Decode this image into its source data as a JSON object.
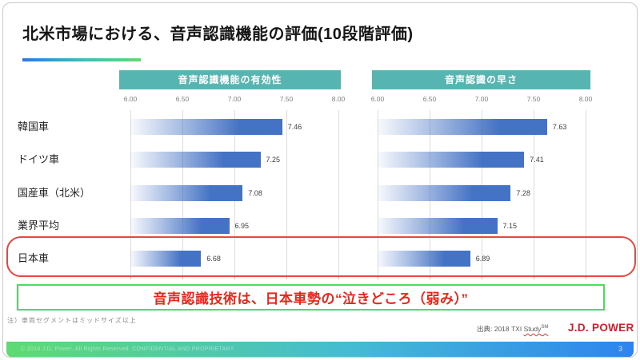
{
  "slide": {
    "title": "北米市場における、音声認識機能の評価(10段階評価)",
    "callout": "音声認識技術は、日本車勢の“泣きどころ（弱み）”",
    "footnote": "注）車両セグメントはミッドサイズ以上",
    "source_prefix": "出典: 2018 TXI ",
    "source_study": "Study",
    "source_sup": "SM",
    "logo_text": "J.D. POWER",
    "footer_copyright": "© 2018 J.D. Power. All Rights Reserved. CONFIDENTIAL AND PROPRIETARY",
    "page_number": "3"
  },
  "colors": {
    "header_teal": "#56b5b1",
    "bar_blue": "#4472c4",
    "highlight_red": "#e8473c",
    "callout_green_border": "#46df58",
    "callout_red_text": "#e8271a",
    "logo_red": "#d0202c",
    "footer_gradient_left": "#5edb72",
    "footer_gradient_right": "#2e84ee",
    "title_underline_left": "#2d77e8",
    "title_underline_right": "#63d96e"
  },
  "chart_data": [
    {
      "type": "bar",
      "orientation": "horizontal",
      "title": "音声認識機能の有効性",
      "categories": [
        "韓国車",
        "ドイツ車",
        "国産車（北米）",
        "業界平均",
        "日本車"
      ],
      "values": [
        7.46,
        7.25,
        7.08,
        6.95,
        6.68
      ],
      "xlim": [
        6.0,
        8.0
      ],
      "xticks": [
        "6.00",
        "6.50",
        "7.00",
        "7.50",
        "8.00"
      ],
      "grid": true,
      "highlighted_category": "日本車"
    },
    {
      "type": "bar",
      "orientation": "horizontal",
      "title": "音声認識の早さ",
      "categories": [
        "韓国車",
        "ドイツ車",
        "国産車（北米）",
        "業界平均",
        "日本車"
      ],
      "values": [
        7.63,
        7.41,
        7.28,
        7.15,
        6.89
      ],
      "xlim": [
        6.0,
        8.0
      ],
      "xticks": [
        "6.00",
        "6.50",
        "7.00",
        "7.50",
        "8.00"
      ],
      "grid": true,
      "highlighted_category": "日本車"
    }
  ]
}
